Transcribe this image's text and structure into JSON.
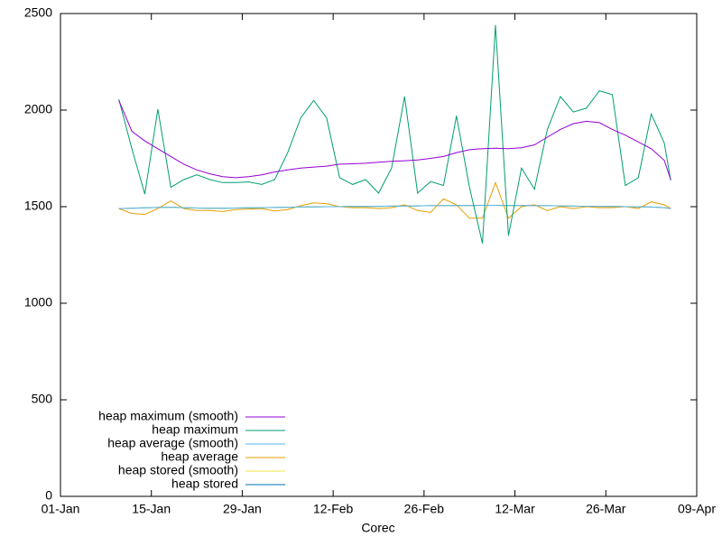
{
  "chart_data": {
    "type": "line",
    "x_label": "Corec",
    "x": [
      "10-Jan",
      "12-Jan",
      "14-Jan",
      "16-Jan",
      "18-Jan",
      "20-Jan",
      "22-Jan",
      "24-Jan",
      "26-Jan",
      "28-Jan",
      "30-Jan",
      "01-Feb",
      "03-Feb",
      "05-Feb",
      "07-Feb",
      "09-Feb",
      "11-Feb",
      "13-Feb",
      "15-Feb",
      "17-Feb",
      "19-Feb",
      "21-Feb",
      "23-Feb",
      "25-Feb",
      "27-Feb",
      "01-Mar",
      "03-Mar",
      "05-Mar",
      "07-Mar",
      "09-Mar",
      "11-Mar",
      "13-Mar",
      "15-Mar",
      "17-Mar",
      "19-Mar",
      "21-Mar",
      "23-Mar",
      "25-Mar",
      "27-Mar",
      "29-Mar",
      "31-Mar",
      "02-Apr",
      "04-Apr",
      "05-Apr"
    ],
    "xlim": [
      "01-Jan",
      "09-Apr"
    ],
    "xticks": [
      "01-Jan",
      "15-Jan",
      "29-Jan",
      "12-Feb",
      "26-Feb",
      "12-Mar",
      "26-Mar",
      "09-Apr"
    ],
    "ylim": [
      0,
      2500
    ],
    "yticks": [
      0,
      500,
      1000,
      1500,
      2000,
      2500
    ],
    "legend": "bottom-left",
    "series": [
      {
        "name": "heap maximum (smooth)",
        "color": "#9400d3",
        "values": [
          2050,
          1890,
          1840,
          1800,
          1760,
          1720,
          1690,
          1670,
          1655,
          1650,
          1655,
          1665,
          1680,
          1690,
          1700,
          1705,
          1710,
          1720,
          1722,
          1725,
          1730,
          1735,
          1738,
          1742,
          1750,
          1760,
          1780,
          1795,
          1800,
          1803,
          1800,
          1805,
          1820,
          1860,
          1900,
          1930,
          1942,
          1935,
          1900,
          1870,
          1835,
          1800,
          1740,
          1640
        ]
      },
      {
        "name": "heap maximum",
        "color": "#009e73",
        "values": [
          2056,
          1800,
          1565,
          2005,
          1600,
          1640,
          1665,
          1640,
          1625,
          1625,
          1628,
          1615,
          1640,
          1780,
          1960,
          2050,
          1960,
          1650,
          1615,
          1640,
          1570,
          1700,
          2070,
          1570,
          1630,
          1610,
          1970,
          1600,
          1310,
          2440,
          1350,
          1700,
          1590,
          1900,
          2070,
          1990,
          2010,
          2100,
          2080,
          1610,
          1650,
          1980,
          1830,
          1635
        ]
      },
      {
        "name": "heap average (smooth)",
        "color": "#56b4e9",
        "values": [
          1490,
          1492,
          1494,
          1496,
          1497,
          1495,
          1493,
          1492,
          1492,
          1493,
          1494,
          1495,
          1496,
          1497,
          1498,
          1499,
          1500,
          1500,
          1501,
          1501,
          1502,
          1503,
          1503,
          1504,
          1505,
          1505,
          1506,
          1506,
          1507,
          1507,
          1506,
          1506,
          1505,
          1505,
          1504,
          1503,
          1502,
          1502,
          1501,
          1500,
          1499,
          1498,
          1495,
          1490
        ]
      },
      {
        "name": "heap average",
        "color": "#e69f00",
        "values": [
          1490,
          1465,
          1460,
          1490,
          1530,
          1490,
          1480,
          1480,
          1475,
          1485,
          1488,
          1490,
          1478,
          1485,
          1505,
          1520,
          1515,
          1500,
          1495,
          1495,
          1490,
          1495,
          1510,
          1480,
          1470,
          1540,
          1510,
          1440,
          1440,
          1625,
          1440,
          1500,
          1510,
          1480,
          1500,
          1490,
          1500,
          1495,
          1495,
          1500,
          1490,
          1525,
          1510,
          1490
        ]
      },
      {
        "name": "heap stored (smooth)",
        "color": "#f0e442",
        "values": [
          1490,
          1492,
          1494,
          1496,
          1497,
          1495,
          1493,
          1492,
          1492,
          1493,
          1494,
          1495,
          1496,
          1497,
          1498,
          1499,
          1500,
          1500,
          1501,
          1501,
          1502,
          1503,
          1503,
          1504,
          1505,
          1505,
          1506,
          1506,
          1507,
          1507,
          1506,
          1506,
          1505,
          1505,
          1504,
          1503,
          1502,
          1502,
          1501,
          1500,
          1499,
          1498,
          1495,
          1490
        ]
      },
      {
        "name": "heap stored",
        "color": "#0072b2",
        "values": [
          1490,
          1492,
          1494,
          1496,
          1497,
          1495,
          1493,
          1492,
          1492,
          1493,
          1494,
          1495,
          1496,
          1497,
          1498,
          1499,
          1500,
          1500,
          1501,
          1501,
          1502,
          1503,
          1503,
          1504,
          1505,
          1505,
          1506,
          1506,
          1507,
          1507,
          1506,
          1506,
          1505,
          1505,
          1504,
          1503,
          1502,
          1502,
          1501,
          1500,
          1499,
          1498,
          1495,
          1490
        ]
      }
    ]
  }
}
